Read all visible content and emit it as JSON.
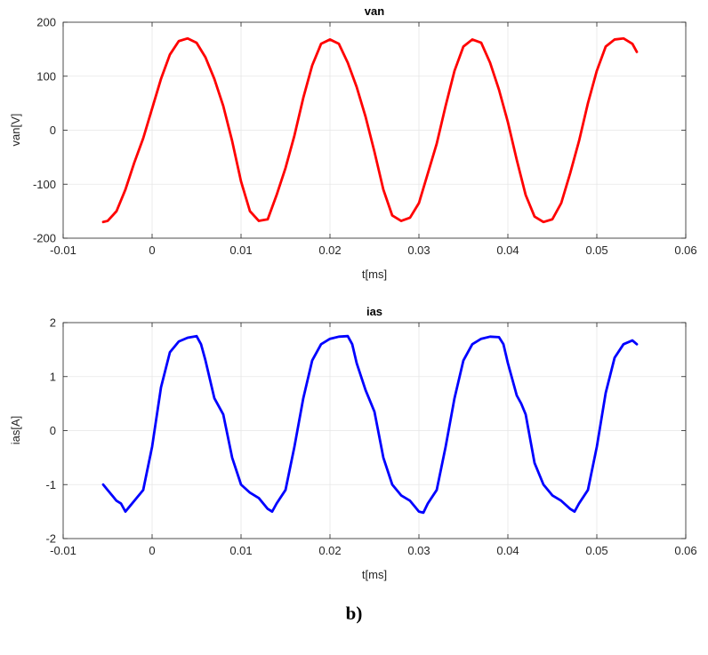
{
  "caption": "b)",
  "chart_data": [
    {
      "type": "line",
      "title": "van",
      "xlabel": "t[ms]",
      "ylabel": "van[V]",
      "xlim": [
        -0.01,
        0.06
      ],
      "ylim": [
        -200,
        200
      ],
      "xticks": [
        -0.01,
        0,
        0.01,
        0.02,
        0.03,
        0.04,
        0.05,
        0.06
      ],
      "xtick_labels": [
        "-0.01",
        "0",
        "0.01",
        "0.02",
        "0.03",
        "0.04",
        "0.05",
        "0.06"
      ],
      "yticks": [
        -200,
        -100,
        0,
        100,
        200
      ],
      "ytick_labels": [
        "-200",
        "-100",
        "0",
        "100",
        "200"
      ],
      "grid": true,
      "color": "#ff0000",
      "series": [
        {
          "x": [
            -0.0055,
            -0.005,
            -0.004,
            -0.003,
            -0.002,
            -0.001,
            0,
            0.001,
            0.002,
            0.003,
            0.004,
            0.005,
            0.006,
            0.007,
            0.008,
            0.009,
            0.01,
            0.011,
            0.012,
            0.013,
            0.014,
            0.015,
            0.016,
            0.017,
            0.018,
            0.019,
            0.02,
            0.021,
            0.022,
            0.023,
            0.024,
            0.025,
            0.026,
            0.027,
            0.028,
            0.029,
            0.03,
            0.031,
            0.032,
            0.033,
            0.034,
            0.035,
            0.036,
            0.037,
            0.038,
            0.039,
            0.04,
            0.041,
            0.042,
            0.043,
            0.044,
            0.045,
            0.046,
            0.047,
            0.048,
            0.049,
            0.05,
            0.051,
            0.052,
            0.053,
            0.054,
            0.0545
          ],
          "y": [
            -170,
            -168,
            -150,
            -110,
            -60,
            -15,
            40,
            95,
            140,
            165,
            170,
            162,
            135,
            95,
            45,
            -20,
            -95,
            -150,
            -168,
            -165,
            -120,
            -70,
            -10,
            60,
            120,
            160,
            168,
            160,
            125,
            80,
            25,
            -40,
            -110,
            -158,
            -168,
            -162,
            -135,
            -80,
            -25,
            45,
            110,
            155,
            168,
            162,
            125,
            75,
            15,
            -55,
            -120,
            -160,
            -170,
            -165,
            -135,
            -80,
            -20,
            50,
            110,
            155,
            168,
            170,
            160,
            145
          ]
        }
      ]
    },
    {
      "type": "line",
      "title": "ias",
      "xlabel": "t[ms]",
      "ylabel": "ias[A]",
      "xlim": [
        -0.01,
        0.06
      ],
      "ylim": [
        -2,
        2
      ],
      "xticks": [
        -0.01,
        0,
        0.01,
        0.02,
        0.03,
        0.04,
        0.05,
        0.06
      ],
      "xtick_labels": [
        "-0.01",
        "0",
        "0.01",
        "0.02",
        "0.03",
        "0.04",
        "0.05",
        "0.06"
      ],
      "yticks": [
        -2,
        -1,
        0,
        1,
        2
      ],
      "ytick_labels": [
        "-2",
        "-1",
        "0",
        "1",
        "2"
      ],
      "grid": true,
      "color": "#0000ff",
      "series": [
        {
          "x": [
            -0.0055,
            -0.005,
            -0.004,
            -0.0035,
            -0.003,
            -0.0025,
            -0.002,
            -0.001,
            0,
            0.001,
            0.002,
            0.003,
            0.004,
            0.005,
            0.0055,
            0.006,
            0.007,
            0.0075,
            0.008,
            0.009,
            0.01,
            0.011,
            0.012,
            0.013,
            0.0135,
            0.014,
            0.015,
            0.016,
            0.017,
            0.018,
            0.019,
            0.02,
            0.021,
            0.022,
            0.0225,
            0.023,
            0.024,
            0.0245,
            0.025,
            0.026,
            0.027,
            0.028,
            0.029,
            0.03,
            0.0305,
            0.031,
            0.032,
            0.033,
            0.034,
            0.035,
            0.036,
            0.037,
            0.038,
            0.039,
            0.0395,
            0.04,
            0.041,
            0.0415,
            0.042,
            0.043,
            0.044,
            0.045,
            0.046,
            0.047,
            0.0475,
            0.048,
            0.049,
            0.05,
            0.051,
            0.052,
            0.053,
            0.054,
            0.0545
          ],
          "y": [
            -1.0,
            -1.1,
            -1.3,
            -1.35,
            -1.5,
            -1.4,
            -1.3,
            -1.1,
            -0.3,
            0.8,
            1.45,
            1.65,
            1.72,
            1.75,
            1.6,
            1.3,
            0.6,
            0.45,
            0.3,
            -0.5,
            -1.0,
            -1.15,
            -1.25,
            -1.45,
            -1.5,
            -1.35,
            -1.1,
            -0.3,
            0.6,
            1.3,
            1.6,
            1.7,
            1.74,
            1.75,
            1.6,
            1.25,
            0.75,
            0.55,
            0.35,
            -0.5,
            -1.0,
            -1.2,
            -1.3,
            -1.5,
            -1.52,
            -1.35,
            -1.1,
            -0.3,
            0.6,
            1.3,
            1.6,
            1.7,
            1.74,
            1.73,
            1.6,
            1.25,
            0.65,
            0.5,
            0.3,
            -0.6,
            -1.0,
            -1.2,
            -1.3,
            -1.45,
            -1.5,
            -1.35,
            -1.1,
            -0.3,
            0.7,
            1.35,
            1.6,
            1.67,
            1.6
          ]
        }
      ]
    }
  ]
}
